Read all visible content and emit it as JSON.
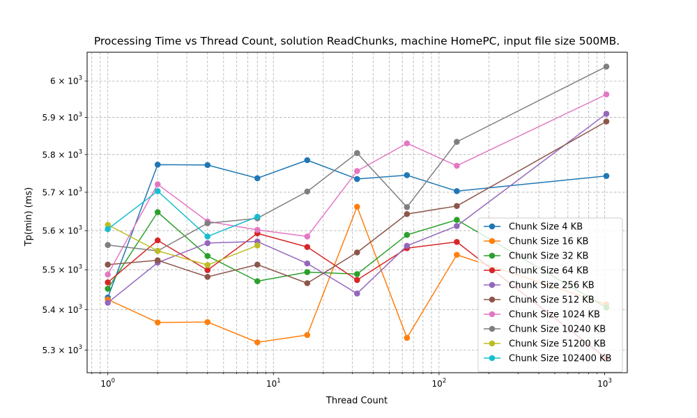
{
  "chart_data": {
    "type": "line",
    "title": "Processing Time vs Thread Count, solution ReadChunks, machine HomePC, input file size 500MB.",
    "xlabel": "Thread Count",
    "ylabel": "Tp(min) (ms)",
    "xscale": "log",
    "yscale": "log",
    "xlim": [
      0.75,
      1370
    ],
    "ylim": [
      5245,
      6080
    ],
    "grid": true,
    "legend_position": "lower-right",
    "x_ticks": [
      {
        "value": 1,
        "base": "10",
        "exp": "0"
      },
      {
        "value": 10,
        "base": "10",
        "exp": "1"
      },
      {
        "value": 100,
        "base": "10",
        "exp": "2"
      },
      {
        "value": 1000,
        "base": "10",
        "exp": "3"
      }
    ],
    "y_ticks": [
      {
        "value": 5300,
        "mant": "5.3 × 10",
        "exp": "3"
      },
      {
        "value": 5400,
        "mant": "5.4 × 10",
        "exp": "3"
      },
      {
        "value": 5500,
        "mant": "5.5 × 10",
        "exp": "3"
      },
      {
        "value": 5600,
        "mant": "5.6 × 10",
        "exp": "3"
      },
      {
        "value": 5700,
        "mant": "5.7 × 10",
        "exp": "3"
      },
      {
        "value": 5800,
        "mant": "5.8 × 10",
        "exp": "3"
      },
      {
        "value": 5900,
        "mant": "5.9 × 10",
        "exp": "3"
      },
      {
        "value": 6000,
        "mant": "6 × 10",
        "exp": "3"
      }
    ],
    "x": [
      1,
      2,
      4,
      8,
      16,
      32,
      64,
      128,
      1024
    ],
    "series": [
      {
        "name": "Chunk Size 4 KB",
        "color": "#1f77b4",
        "x": [
          1,
          2,
          4,
          8,
          16,
          32,
          64,
          128,
          1024
        ],
        "values": [
          5430,
          5773,
          5772,
          5737,
          5785,
          5735,
          5745,
          5703,
          5743
        ]
      },
      {
        "name": "Chunk Size 16 KB",
        "color": "#ff7f0e",
        "x": [
          1,
          2,
          4,
          8,
          16,
          32,
          64,
          128,
          1024
        ],
        "values": [
          5425,
          5368,
          5369,
          5319,
          5337,
          5662,
          5330,
          5538,
          5413
        ]
      },
      {
        "name": "Chunk Size 32 KB",
        "color": "#2ca02c",
        "x": [
          1,
          2,
          4,
          8,
          16,
          32,
          64,
          128,
          1024
        ],
        "values": [
          5452,
          5648,
          5535,
          5471,
          5494,
          5489,
          5589,
          5628,
          5405
        ]
      },
      {
        "name": "Chunk Size 64 KB",
        "color": "#d62728",
        "x": [
          1,
          2,
          4,
          8,
          16,
          32,
          64,
          128,
          1024
        ],
        "values": [
          5468,
          5575,
          5499,
          5593,
          5558,
          5474,
          5555,
          5571,
          5280
        ]
      },
      {
        "name": "Chunk Size 256 KB",
        "color": "#9467bd",
        "x": [
          1,
          2,
          4,
          8,
          16,
          32,
          64,
          128,
          1024
        ],
        "values": [
          5417,
          5518,
          5568,
          5572,
          5516,
          5440,
          5561,
          5612,
          5910
        ]
      },
      {
        "name": "Chunk Size 512 KB",
        "color": "#8c564b",
        "x": [
          1,
          2,
          4,
          8,
          16,
          32,
          64,
          128,
          1024
        ],
        "values": [
          5513,
          5524,
          5482,
          5513,
          5466,
          5544,
          5643,
          5664,
          5889
        ]
      },
      {
        "name": "Chunk Size 1024 KB",
        "color": "#e377c2",
        "x": [
          1,
          2,
          4,
          8,
          16,
          32,
          64,
          128,
          1024
        ],
        "values": [
          5488,
          5721,
          5624,
          5602,
          5585,
          5756,
          5830,
          5770,
          5963
        ]
      },
      {
        "name": "Chunk Size 10240 KB",
        "color": "#7f7f7f",
        "x": [
          1,
          2,
          4,
          8,
          16,
          32,
          64,
          128,
          1024
        ],
        "values": [
          5563,
          5548,
          5619,
          5632,
          5702,
          5804,
          5661,
          5834,
          6040
        ]
      },
      {
        "name": "Chunk Size 51200 KB",
        "color": "#bcbd22",
        "x": [
          1,
          2,
          4,
          8
        ],
        "values": [
          5615,
          5548,
          5512,
          5562
        ]
      },
      {
        "name": "Chunk Size 102400 KB",
        "color": "#17becf",
        "x": [
          1,
          2,
          4,
          8
        ],
        "values": [
          5604,
          5703,
          5585,
          5636
        ]
      }
    ]
  }
}
